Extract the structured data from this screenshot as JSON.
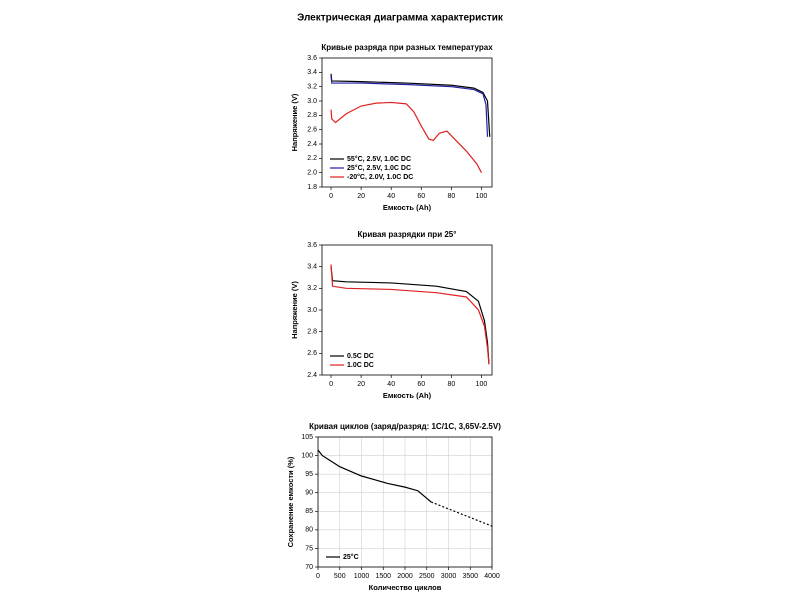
{
  "title": "Электрическая диаграмма характеристик",
  "chart_data": [
    {
      "type": "line",
      "title": "Кривые разряда при разных температурах",
      "xlabel": "Емкость (Ah)",
      "ylabel": "Напряжение (V)",
      "xlim": [
        -6,
        107
      ],
      "xticks": [
        0,
        20,
        40,
        60,
        80,
        100
      ],
      "ylim": [
        1.8,
        3.6
      ],
      "yticks": [
        1.8,
        {
          "value": 2.0,
          "label": "2.0"
        },
        2.2,
        2.4,
        2.6,
        2.8,
        {
          "value": 3.0,
          "label": "3.0"
        },
        3.2,
        3.4,
        3.6
      ],
      "grid": false,
      "legend": "lower left",
      "series": [
        {
          "name": "55°C, 2.5V, 1.0C DC",
          "color": "#000000",
          "x": [
            0,
            0.5,
            20,
            50,
            80,
            95,
            101,
            104,
            105.5
          ],
          "values": [
            3.38,
            3.28,
            3.27,
            3.25,
            3.22,
            3.18,
            3.12,
            3.0,
            2.5
          ]
        },
        {
          "name": "25°C, 2.5V, 1.0C DC",
          "color": "#1f1fa8",
          "x": [
            0,
            0.5,
            20,
            50,
            80,
            95,
            101,
            103,
            104
          ],
          "values": [
            3.35,
            3.25,
            3.25,
            3.23,
            3.2,
            3.16,
            3.1,
            2.95,
            2.5
          ]
        },
        {
          "name": "-20°C, 2.0V, 1.0C DC",
          "color": "#e02020",
          "x": [
            0,
            0.5,
            3,
            10,
            20,
            30,
            40,
            50,
            55,
            60,
            65,
            68,
            72,
            77,
            83,
            90,
            97,
            100
          ],
          "values": [
            2.88,
            2.75,
            2.7,
            2.82,
            2.93,
            2.97,
            2.98,
            2.96,
            2.85,
            2.65,
            2.47,
            2.45,
            2.55,
            2.58,
            2.45,
            2.3,
            2.12,
            2.0
          ]
        }
      ]
    },
    {
      "type": "line",
      "title": "Кривая разрядки при 25°",
      "xlabel": "Емкость (Ah)",
      "ylabel": "Напряжение (V)",
      "xlim": [
        -6,
        107
      ],
      "xticks": [
        0,
        20,
        40,
        60,
        80,
        100
      ],
      "ylim": [
        2.4,
        3.6
      ],
      "yticks": [
        2.4,
        2.6,
        2.8,
        {
          "value": 3.0,
          "label": "3.0"
        },
        3.2,
        3.4,
        3.6
      ],
      "grid": false,
      "legend": "lower left",
      "series": [
        {
          "name": "0.5C DC",
          "color": "#000000",
          "x": [
            0,
            1,
            10,
            40,
            70,
            90,
            98,
            102,
            104,
            105
          ],
          "values": [
            3.4,
            3.27,
            3.26,
            3.25,
            3.22,
            3.17,
            3.08,
            2.9,
            2.7,
            2.5
          ]
        },
        {
          "name": "1.0C DC",
          "color": "#e02020",
          "x": [
            0,
            1,
            10,
            40,
            70,
            90,
            98,
            102,
            104,
            105
          ],
          "values": [
            3.42,
            3.22,
            3.2,
            3.19,
            3.16,
            3.12,
            3.0,
            2.85,
            2.65,
            2.5
          ]
        }
      ]
    },
    {
      "type": "line",
      "title": "Кривая циклов (заряд/разряд: 1C/1C, 3,65V-2.5V)",
      "xlabel": "Количество циклов",
      "ylabel": "Сохранение емкости (%)",
      "xlim": [
        0,
        4000
      ],
      "xticks": [
        0,
        500,
        1000,
        1500,
        2000,
        2500,
        3000,
        3500,
        4000
      ],
      "ylim": [
        70,
        105
      ],
      "yticks": [
        70,
        75,
        80,
        85,
        90,
        95,
        100,
        105
      ],
      "grid": true,
      "legend": "lower left",
      "series": [
        {
          "name": "25°C",
          "color": "#000000",
          "x": [
            0,
            100,
            300,
            500,
            800,
            1000,
            1300,
            1600,
            2000,
            2300,
            2500,
            2600
          ],
          "values": [
            101.5,
            100,
            98.5,
            97,
            95.5,
            94.5,
            93.5,
            92.5,
            91.5,
            90.5,
            88.5,
            87.5
          ]
        },
        {
          "color": "#000000",
          "style": "dashed",
          "x": [
            2600,
            4000
          ],
          "values": [
            87.5,
            81
          ]
        }
      ]
    }
  ]
}
